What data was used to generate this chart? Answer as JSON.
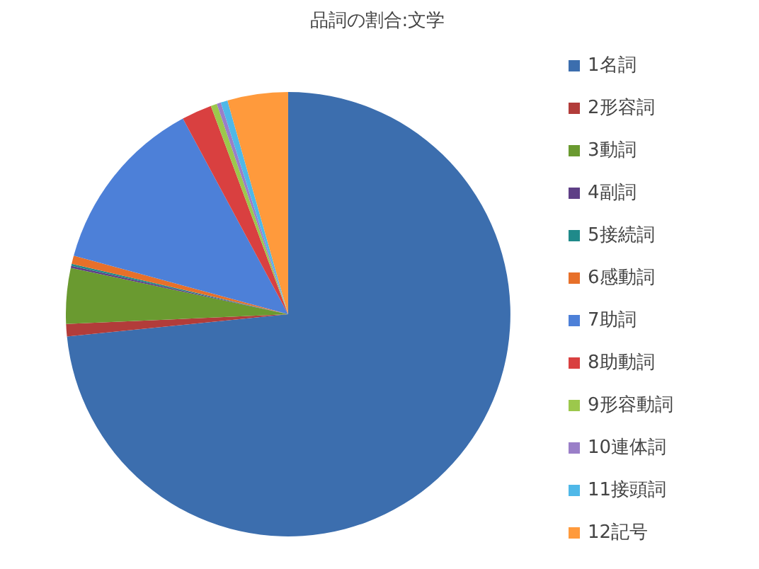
{
  "chart_data": {
    "type": "pie",
    "title": "品詞の割合:文学",
    "categories": [
      "1名詞",
      "2形容詞",
      "3動詞",
      "4副詞",
      "5接続詞",
      "6感動詞",
      "7助詞",
      "8助動詞",
      "9形容動詞",
      "10連体詞",
      "11接頭詞",
      "12記号"
    ],
    "values": [
      73.4,
      0.9,
      4.05,
      0.15,
      0.15,
      0.6,
      12.9,
      2.2,
      0.45,
      0.3,
      0.5,
      4.4
    ],
    "colors": [
      "#3c6eae",
      "#b23c3a",
      "#6a9a30",
      "#5e3f86",
      "#1f8a8a",
      "#e7702a",
      "#4d80d8",
      "#d94040",
      "#9cc84c",
      "#9a7fc8",
      "#4fb8e8",
      "#ff9a3c"
    ],
    "legend": "right"
  }
}
